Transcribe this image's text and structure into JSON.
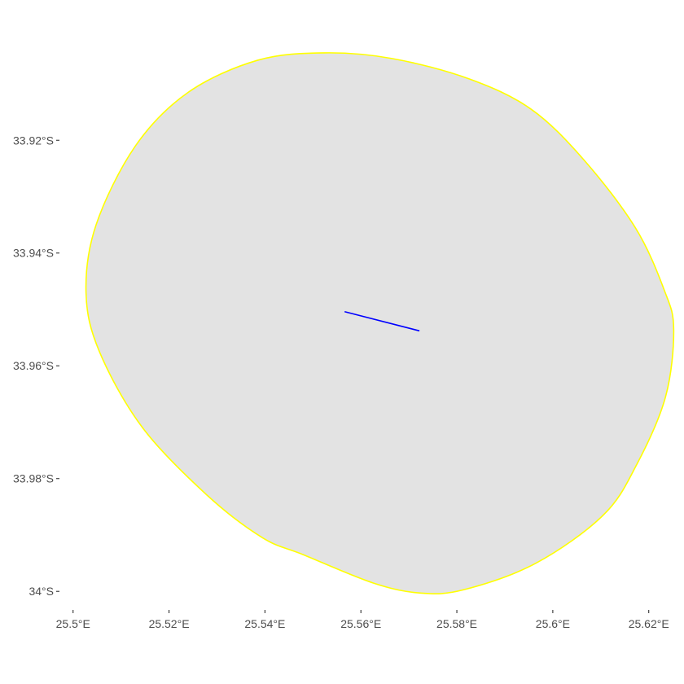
{
  "map": {
    "x_axis": {
      "unit": "longitude",
      "range": [
        25.4975,
        25.6265
      ],
      "ticks": [
        {
          "value": 25.5,
          "label": "25.5°E"
        },
        {
          "value": 25.52,
          "label": "25.52°E"
        },
        {
          "value": 25.54,
          "label": "25.54°E"
        },
        {
          "value": 25.56,
          "label": "25.56°E"
        },
        {
          "value": 25.58,
          "label": "25.58°E"
        },
        {
          "value": 25.6,
          "label": "25.6°E"
        },
        {
          "value": 25.62,
          "label": "25.62°E"
        }
      ]
    },
    "y_axis": {
      "unit": "latitude",
      "range": [
        -34.003,
        -33.9035
      ],
      "ticks": [
        {
          "value": -33.92,
          "label": "33.92°S"
        },
        {
          "value": -33.94,
          "label": "33.94°S"
        },
        {
          "value": -33.96,
          "label": "33.96°S"
        },
        {
          "value": -33.98,
          "label": "33.98°S"
        },
        {
          "value": -34.0,
          "label": "34°S"
        }
      ]
    },
    "grid": false,
    "panel_background": "#ffffff",
    "layers": {
      "buffer_area": {
        "fill": "#e3e3e3",
        "stroke": "#ffff00",
        "description_type": "buffered polygon around line segment",
        "outline": [
          [
            25.5665,
            -33.9055
          ],
          [
            25.5825,
            -33.9091
          ],
          [
            25.5955,
            -33.9145
          ],
          [
            25.6065,
            -33.9235
          ],
          [
            25.6172,
            -33.9355
          ],
          [
            25.6232,
            -33.9465
          ],
          [
            25.6252,
            -33.9535
          ],
          [
            25.6235,
            -33.9655
          ],
          [
            25.6175,
            -33.9775
          ],
          [
            25.6105,
            -33.9865
          ],
          [
            25.5965,
            -33.995
          ],
          [
            25.5815,
            -33.9997
          ],
          [
            25.5724,
            -34.0003
          ],
          [
            25.5625,
            -33.9985
          ],
          [
            25.548,
            -33.9935
          ],
          [
            25.5395,
            -33.9905
          ],
          [
            25.528,
            -33.983
          ],
          [
            25.5145,
            -33.971
          ],
          [
            25.5055,
            -33.9575
          ],
          [
            25.5027,
            -33.947
          ],
          [
            25.5048,
            -33.935
          ],
          [
            25.513,
            -33.921
          ],
          [
            25.524,
            -33.9115
          ],
          [
            25.5385,
            -33.9058
          ],
          [
            25.5525,
            -33.9045
          ]
        ]
      },
      "line_feature": {
        "stroke": "#0000ff",
        "points": [
          [
            25.5566,
            -33.9504
          ],
          [
            25.5722,
            -33.9538
          ]
        ]
      }
    }
  }
}
